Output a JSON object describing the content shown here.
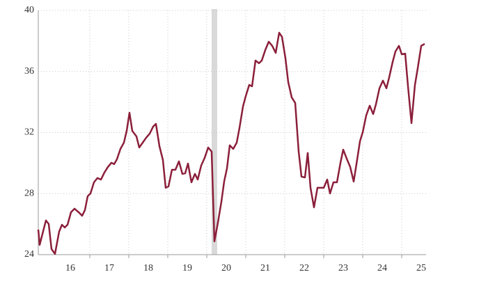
{
  "chart_data": {
    "type": "line",
    "x": [
      2015.679,
      2015.714,
      2015.875,
      2015.946,
      2016.018,
      2016.107,
      2016.214,
      2016.286,
      2016.357,
      2016.429,
      2016.518,
      2016.607,
      2016.714,
      2016.804,
      2016.875,
      2016.946,
      2017.018,
      2017.107,
      2017.196,
      2017.286,
      2017.375,
      2017.464,
      2017.554,
      2017.625,
      2017.696,
      2017.786,
      2017.875,
      2017.946,
      2018.018,
      2018.089,
      2018.196,
      2018.268,
      2018.357,
      2018.446,
      2018.536,
      2018.625,
      2018.696,
      2018.786,
      2018.875,
      2018.946,
      2019.018,
      2019.107,
      2019.196,
      2019.286,
      2019.375,
      2019.446,
      2019.518,
      2019.607,
      2019.696,
      2019.768,
      2019.857,
      2019.946,
      2020.036,
      2020.125,
      2020.196,
      2020.286,
      2020.375,
      2020.446,
      2020.518,
      2020.589,
      2020.679,
      2020.768,
      2020.839,
      2020.929,
      2021.0,
      2021.089,
      2021.161,
      2021.25,
      2021.339,
      2021.411,
      2021.5,
      2021.589,
      2021.679,
      2021.768,
      2021.857,
      2021.929,
      2022.018,
      2022.089,
      2022.179,
      2022.268,
      2022.357,
      2022.429,
      2022.518,
      2022.589,
      2022.661,
      2022.75,
      2022.839,
      2022.929,
      2023.0,
      2023.089,
      2023.161,
      2023.25,
      2023.339,
      2023.429,
      2023.5,
      2023.589,
      2023.679,
      2023.768,
      2023.839,
      2023.929,
      2024.0,
      2024.089,
      2024.179,
      2024.268,
      2024.339,
      2024.429,
      2024.518,
      2024.607,
      2024.679,
      2024.768,
      2024.839,
      2024.929,
      2025.0,
      2025.089,
      2025.161,
      2025.25,
      2025.339,
      2025.411,
      2025.5,
      2025.589
    ],
    "series": [
      {
        "color": "#8b1f3a",
        "values": [
          25.64,
          24.64,
          26.24,
          26.01,
          24.37,
          24.05,
          25.51,
          25.96,
          25.78,
          25.96,
          26.78,
          27.01,
          26.78,
          26.55,
          26.92,
          27.83,
          28.01,
          28.74,
          29.02,
          28.92,
          29.38,
          29.74,
          30.02,
          29.93,
          30.25,
          30.93,
          31.34,
          32.11,
          33.3,
          32.11,
          31.75,
          31.02,
          31.34,
          31.66,
          31.93,
          32.39,
          32.57,
          31.11,
          30.2,
          28.38,
          28.47,
          29.56,
          29.56,
          30.11,
          29.29,
          29.33,
          29.97,
          28.74,
          29.29,
          28.92,
          29.84,
          30.34,
          31.02,
          30.75,
          24.87,
          26.1,
          27.47,
          28.79,
          29.65,
          31.16,
          30.93,
          31.34,
          32.3,
          33.71,
          34.39,
          35.12,
          35.03,
          36.72,
          36.54,
          36.72,
          37.4,
          37.95,
          37.68,
          37.22,
          38.54,
          38.27,
          36.86,
          35.31,
          34.3,
          33.94,
          30.75,
          29.11,
          29.06,
          30.66,
          28.38,
          27.1,
          28.38,
          28.38,
          28.38,
          28.92,
          28.01,
          28.74,
          28.74,
          30.02,
          30.88,
          30.29,
          29.74,
          28.79,
          29.93,
          31.43,
          32.02,
          33.12,
          33.76,
          33.21,
          33.85,
          34.9,
          35.4,
          34.9,
          35.62,
          36.63,
          37.31,
          37.68,
          37.13,
          37.17,
          35.03,
          32.62,
          35.12,
          36.22,
          37.68,
          37.81
        ]
      }
    ],
    "xlim": [
      2015.679,
      2025.625
    ],
    "xticks": [
      {
        "value": 2016.5,
        "label": "16"
      },
      {
        "value": 2017.5,
        "label": "17"
      },
      {
        "value": 2018.5,
        "label": "18"
      },
      {
        "value": 2019.5,
        "label": "19"
      },
      {
        "value": 2020.5,
        "label": "20"
      },
      {
        "value": 2021.5,
        "label": "21"
      },
      {
        "value": 2022.5,
        "label": "22"
      },
      {
        "value": 2023.5,
        "label": "23"
      },
      {
        "value": 2024.5,
        "label": "24"
      },
      {
        "value": 2025.5,
        "label": "25"
      }
    ],
    "xgrid": [
      2017,
      2018,
      2019,
      2020,
      2021,
      2022,
      2023,
      2024,
      2025
    ],
    "shade": [
      2020.125,
      2020.268
    ],
    "shade_color": "#d9d9d9",
    "ylim": [
      24,
      40
    ],
    "yticks": [
      24,
      28,
      32,
      36,
      40
    ],
    "grid": true
  }
}
